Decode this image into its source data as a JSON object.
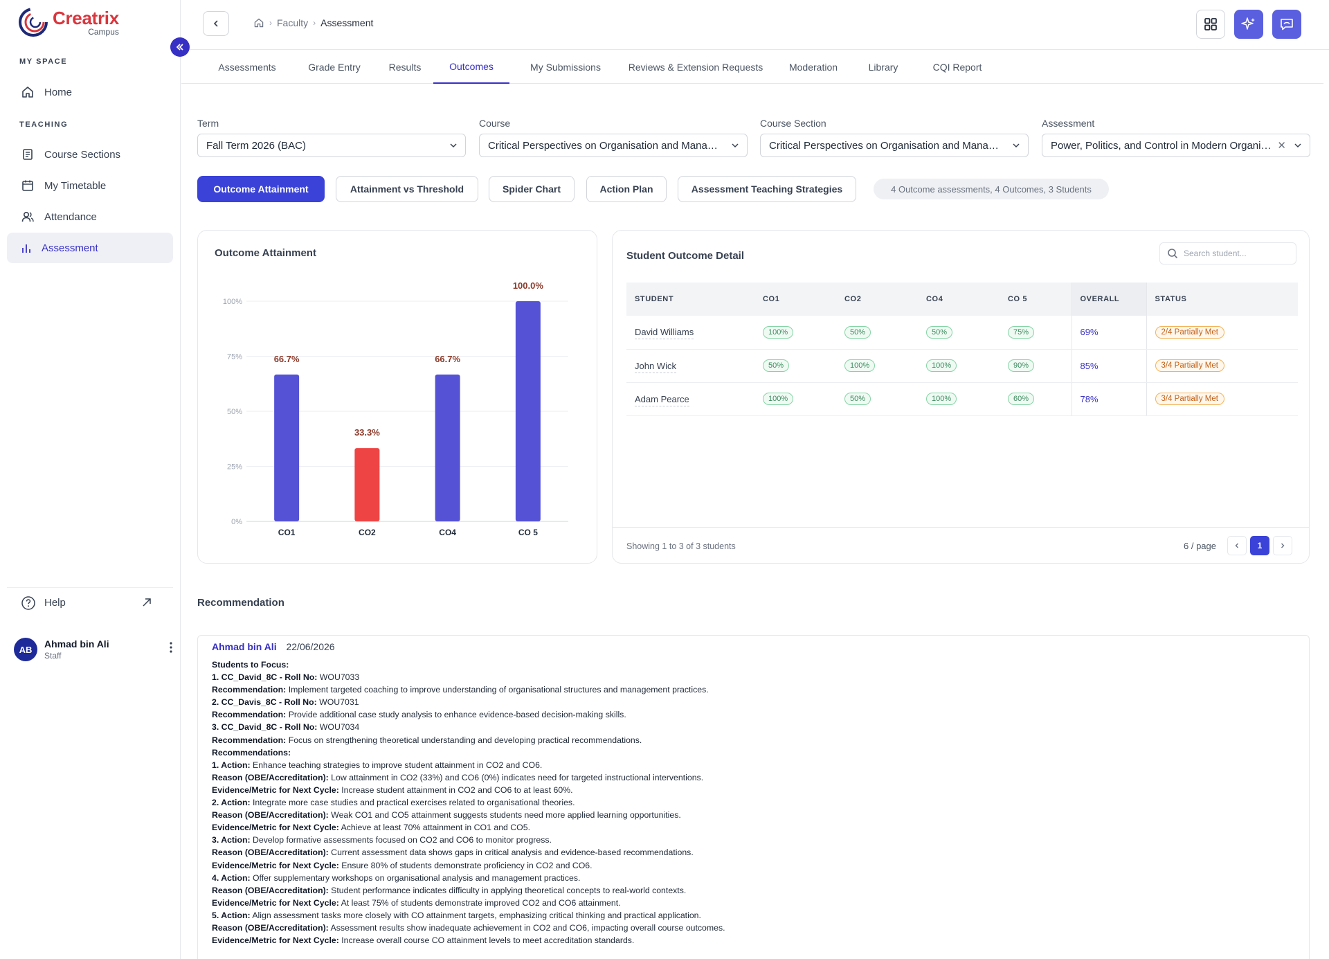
{
  "brand": {
    "name": "Creatrix",
    "sub": "Campus",
    "accent": "#d9363e",
    "primary": "#3a42d8"
  },
  "sidebar": {
    "my_space_label": "MY SPACE",
    "teaching_label": "TEACHING",
    "items": [
      {
        "label": "Home",
        "icon": "home-icon"
      },
      {
        "label": "Course Sections",
        "icon": "document-icon"
      },
      {
        "label": "My Timetable",
        "icon": "calendar-icon"
      },
      {
        "label": "Attendance",
        "icon": "users-icon"
      },
      {
        "label": "Assessment",
        "icon": "bar-chart-icon",
        "active": true
      }
    ],
    "help_label": "Help",
    "user": {
      "initials": "AB",
      "name": "Ahmad bin Ali",
      "role": "Staff"
    }
  },
  "breadcrumb": {
    "items": [
      "Faculty",
      "Assessment"
    ]
  },
  "tabs": [
    "Assessments",
    "Grade Entry",
    "Results",
    "Outcomes",
    "My Submissions",
    "Reviews & Extension Requests",
    "Moderation",
    "Library",
    "CQI Report"
  ],
  "active_tab": "Outcomes",
  "filters": [
    {
      "label": "Term",
      "value": "Fall Term 2026 (BAC)"
    },
    {
      "label": "Course",
      "value": "Critical Perspectives on Organisation and Management"
    },
    {
      "label": "Course Section",
      "value": "Critical Perspectives on Organisation and Management"
    },
    {
      "label": "Assessment",
      "value": "Power, Politics, and Control in Modern Organisations"
    }
  ],
  "view_buttons": [
    "Outcome Attainment",
    "Attainment vs Threshold",
    "Spider Chart",
    "Action Plan",
    "Assessment Teaching Strategies"
  ],
  "summary": "4 Outcome assessments, 4 Outcomes, 3 Students",
  "chart_card": {
    "title": "Outcome Attainment"
  },
  "chart_data": {
    "type": "bar",
    "title": "Outcome Attainment",
    "categories": [
      "CO1",
      "CO2",
      "CO4",
      "CO 5"
    ],
    "values": [
      66.7,
      33.3,
      66.7,
      100.0
    ],
    "data_labels": [
      "66.7%",
      "33.3%",
      "66.7%",
      "100.0%"
    ],
    "bar_colors": [
      "#5552d6",
      "#ef4444",
      "#5552d6",
      "#5552d6"
    ],
    "yticks": [
      "0%",
      "25%",
      "50%",
      "75%",
      "100%"
    ],
    "ylim": [
      0,
      100
    ],
    "grid": true
  },
  "detail": {
    "title": "Student Outcome Detail",
    "search_placeholder": "Search student...",
    "columns": [
      "STUDENT",
      "CO1",
      "CO2",
      "CO4",
      "CO 5",
      "OVERALL",
      "STATUS"
    ],
    "rows": [
      {
        "student": "David Williams",
        "co": [
          "100%",
          "50%",
          "50%",
          "75%"
        ],
        "overall": "69%",
        "status": "2/4 Partially Met"
      },
      {
        "student": "John Wick",
        "co": [
          "50%",
          "100%",
          "100%",
          "90%"
        ],
        "overall": "85%",
        "status": "3/4 Partially Met"
      },
      {
        "student": "Adam Pearce",
        "co": [
          "100%",
          "50%",
          "100%",
          "60%"
        ],
        "overall": "78%",
        "status": "3/4 Partially Met"
      }
    ],
    "showing": "Showing 1 to 3 of 3 students",
    "per_page": "6 / page",
    "current_page": "1"
  },
  "recommendation": {
    "title": "Recommendation",
    "author": "Ahmad bin Ali",
    "date": "22/06/2026",
    "lines": [
      {
        "b": "Students to Focus:",
        "t": ""
      },
      {
        "b": "1. CC_David_8C - Roll No:",
        "t": " WOU7033"
      },
      {
        "b": "Recommendation:",
        "t": " Implement targeted coaching to improve understanding of organisational structures and management practices."
      },
      {
        "b": "2. CC_Davis_8C - Roll No:",
        "t": " WOU7031"
      },
      {
        "b": "Recommendation:",
        "t": " Provide additional case study analysis to enhance evidence-based decision-making skills."
      },
      {
        "b": "3. CC_David_8C - Roll No:",
        "t": " WOU7034"
      },
      {
        "b": "Recommendation:",
        "t": " Focus on strengthening theoretical understanding and developing practical recommendations."
      },
      {
        "b": "Recommendations:",
        "t": ""
      },
      {
        "b": "1. Action:",
        "t": " Enhance teaching strategies to improve student attainment in CO2 and CO6."
      },
      {
        "b": "Reason (OBE/Accreditation):",
        "t": " Low attainment in CO2 (33%) and CO6 (0%) indicates need for targeted instructional interventions."
      },
      {
        "b": "Evidence/Metric for Next Cycle:",
        "t": " Increase student attainment in CO2 and CO6 to at least 60%."
      },
      {
        "b": "2. Action:",
        "t": " Integrate more case studies and practical exercises related to organisational theories."
      },
      {
        "b": "Reason (OBE/Accreditation):",
        "t": " Weak CO1 and CO5 attainment suggests students need more applied learning opportunities."
      },
      {
        "b": "Evidence/Metric for Next Cycle:",
        "t": " Achieve at least 70% attainment in CO1 and CO5."
      },
      {
        "b": "3. Action:",
        "t": " Develop formative assessments focused on CO2 and CO6 to monitor progress."
      },
      {
        "b": "Reason (OBE/Accreditation):",
        "t": " Current assessment data shows gaps in critical analysis and evidence-based recommendations."
      },
      {
        "b": "Evidence/Metric for Next Cycle:",
        "t": " Ensure 80% of students demonstrate proficiency in CO2 and CO6."
      },
      {
        "b": "4. Action:",
        "t": " Offer supplementary workshops on organisational analysis and management practices."
      },
      {
        "b": "Reason (OBE/Accreditation):",
        "t": " Student performance indicates difficulty in applying theoretical concepts to real-world contexts."
      },
      {
        "b": "Evidence/Metric for Next Cycle:",
        "t": " At least 75% of students demonstrate improved CO2 and CO6 attainment."
      },
      {
        "b": "5. Action:",
        "t": " Align assessment tasks more closely with CO attainment targets, emphasizing critical thinking and practical application."
      },
      {
        "b": "Reason (OBE/Accreditation):",
        "t": " Assessment results show inadequate achievement in CO2 and CO6, impacting overall course outcomes."
      },
      {
        "b": "Evidence/Metric for Next Cycle:",
        "t": " Increase overall course CO attainment levels to meet accreditation standards."
      }
    ]
  }
}
